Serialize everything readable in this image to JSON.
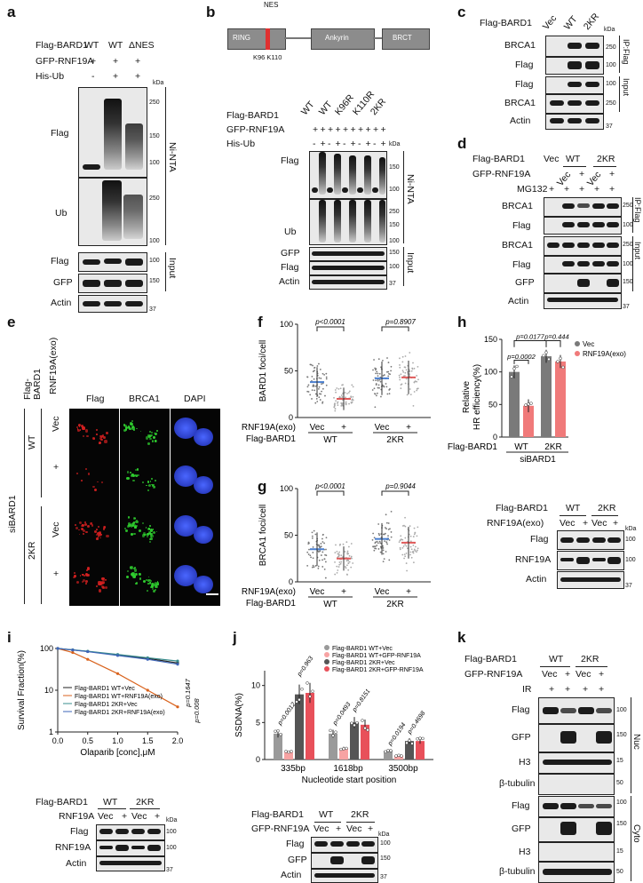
{
  "panels": {
    "a": "a",
    "b": "b",
    "c": "c",
    "d": "d",
    "e": "e",
    "f": "f",
    "g": "g",
    "h": "h",
    "i": "i",
    "j": "j",
    "k": "k"
  },
  "common": {
    "kda": "kDa",
    "flag": "Flag",
    "ub": "Ub",
    "gfp": "GFP",
    "actin": "Actin",
    "brca1": "BRCA1",
    "input": "Input",
    "ninta": "Ni-NTA",
    "ipflag": "IP:Flag",
    "rnf19a": "RNF19A",
    "h3": "H3",
    "btub": "β-tubulin",
    "vec": "Vec",
    "plus": "+",
    "minus": "-",
    "wt": "WT",
    "kr2": "2KR",
    "mw250": "250",
    "mw150": "150",
    "mw100": "100",
    "mw50": "50",
    "mw37": "37",
    "mw15": "15"
  },
  "a": {
    "row1": "Flag-BARD1",
    "row2": "GFP-RNF19A",
    "row3": "His-Ub",
    "col1": "WT",
    "col2": "WT",
    "col3": "ΔNES",
    "r2": [
      "+",
      "+",
      "+"
    ],
    "r3": [
      "-",
      "+",
      "+"
    ]
  },
  "b": {
    "domains": [
      "RING",
      "Ankyrin",
      "BRCT"
    ],
    "nes": "NES",
    "sites": "K96 K110",
    "row1": "Flag-BARD1",
    "row2": "GFP-RNF19A",
    "row3": "His-Ub",
    "cols": [
      "WT",
      "WT",
      "K96R",
      "K110R",
      "2KR"
    ],
    "r2": [
      "+",
      "+",
      "+",
      "+",
      "+",
      "+",
      "+",
      "+",
      "+",
      "+"
    ],
    "r3": [
      "-",
      "+",
      "-",
      "+",
      "-",
      "+",
      "-",
      "+",
      "-",
      "+"
    ]
  },
  "c": {
    "row1": "Flag-BARD1",
    "cols": [
      "Vec",
      "WT",
      "2KR"
    ]
  },
  "d": {
    "row1": "Flag-BARD1",
    "row2": "GFP-RNF19A",
    "row3": "MG132",
    "g1": "Vec",
    "g2": "WT",
    "g3": "2KR",
    "r2": [
      "Vec",
      "+",
      "Vec",
      "+"
    ],
    "r3": [
      "+",
      "+",
      "+",
      "+",
      "+"
    ]
  },
  "e": {
    "h1": "Flag-\nBARD1",
    "h2": "RNF19A(exo)",
    "cols": [
      "Flag",
      "BRCA1",
      "DAPI"
    ],
    "side": "siBARD1",
    "g1": "WT",
    "g2": "2KR",
    "rows": [
      "Vec",
      "+",
      "Vec",
      "+"
    ]
  },
  "f": {
    "ylabel": "BARD1 foci/cell",
    "p1": "p<0.0001",
    "p2": "p=0.8907",
    "ticks": [
      "0",
      "50",
      "100"
    ],
    "r1": "RNF19A(exo)",
    "r2": "Flag-BARD1",
    "cols": [
      "Vec",
      "+",
      "Vec",
      "+"
    ],
    "g1": "WT",
    "g2": "2KR"
  },
  "g": {
    "ylabel": "BRCA1 foci/cell",
    "p1": "p<0.0001",
    "p2": "p=0.9044",
    "ticks": [
      "0",
      "50",
      "100"
    ],
    "r1": "RNF19A(exo)",
    "r2": "Flag-BARD1",
    "cols": [
      "Vec",
      "+",
      "Vec",
      "+"
    ],
    "g1": "WT",
    "g2": "2KR"
  },
  "h": {
    "ylabel": "Relative\nHR efficiency(%)",
    "p_top": "p=0.0177",
    "p_left": "p=0.0002",
    "p_right": "p=0.444",
    "legend": [
      "Vec",
      "RNF19A(exo)"
    ],
    "xrow": "Flag-BARD1",
    "g1": "WT",
    "g2": "2KR",
    "sub": "siBARD1",
    "ticks": [
      "0",
      "50",
      "100",
      "150"
    ],
    "blot_r1": "Flag-BARD1",
    "blot_r2": "RNF19A(exo)",
    "blot_cols": [
      "Vec",
      "+",
      "Vec",
      "+"
    ]
  },
  "i": {
    "ylabel": "Survival Fraction(%)",
    "xlabel": "Olaparib [conc],μM",
    "ticks_y": [
      "1",
      "10",
      "100"
    ],
    "ticks_x": [
      "0.0",
      "0.5",
      "1.0",
      "1.5",
      "2.0"
    ],
    "legend": [
      "Flag-BARD1 WT+Vec",
      "Flag-BARD1 WT+RNF19A(exo)",
      "Flag-BARD1 2KR+Vec",
      "Flag-BARD1 2KR+RNF19A(exo)"
    ],
    "p1": "p=0.1647",
    "p2": "p=0.008",
    "blot_r1": "Flag-BARD1",
    "blot_r2": "RNF19A",
    "blot_cols": [
      "Vec",
      "+",
      "Vec",
      "+"
    ]
  },
  "j": {
    "ylabel": "SSDNA(%)",
    "xlabel": "Nucleotide start position",
    "cats": [
      "335bp",
      "1618bp",
      "3500bp"
    ],
    "ticks": [
      "0",
      "5",
      "10"
    ],
    "legend": [
      "Flag-BARD1 WT+Vec",
      "Flag-BARD1 WT+GFP-RNF19A",
      "Flag-BARD1 2KR+Vec",
      "Flag-BARD1 2KR+GFP-RNF19A"
    ],
    "pvals": [
      "p=0.0012",
      "p=0.963",
      "p=0.0493",
      "p=0.8151",
      "p=0.0194",
      "p=0.4698"
    ],
    "blot_r1": "Flag-BARD1",
    "blot_r2": "GFP-RNF19A",
    "blot_cols": [
      "Vec",
      "+",
      "Vec",
      "+"
    ]
  },
  "k": {
    "row1": "Flag-BARD1",
    "row2": "GFP-RNF19A",
    "row3": "IR",
    "r2": [
      "Vec",
      "+",
      "Vec",
      "+"
    ],
    "r3": [
      "+",
      "+",
      "+",
      "+"
    ],
    "nuc": "Nuc",
    "cyto": "Cyto"
  },
  "chart_data": [
    {
      "type": "scatter",
      "title": "",
      "ylabel": "BARD1 foci/cell",
      "ylim": [
        0,
        100
      ],
      "categories": [
        "WT Vec",
        "WT +",
        "2KR Vec",
        "2KR +"
      ],
      "means": [
        38,
        20,
        42,
        43
      ],
      "sd": [
        16,
        12,
        18,
        18
      ]
    },
    {
      "type": "scatter",
      "title": "",
      "ylabel": "BRCA1 foci/cell",
      "ylim": [
        0,
        100
      ],
      "categories": [
        "WT Vec",
        "WT +",
        "2KR Vec",
        "2KR +"
      ],
      "means": [
        35,
        25,
        46,
        42
      ],
      "sd": [
        18,
        13,
        17,
        17
      ]
    },
    {
      "type": "bar",
      "title": "",
      "ylabel": "Relative HR efficiency(%)",
      "ylim": [
        0,
        150
      ],
      "categories": [
        "WT",
        "2KR"
      ],
      "series": [
        {
          "name": "Vec",
          "values": [
            100,
            124
          ]
        },
        {
          "name": "RNF19A(exo)",
          "values": [
            48,
            116
          ]
        }
      ]
    },
    {
      "type": "line",
      "title": "",
      "xlabel": "Olaparib [conc],μM",
      "ylabel": "Survival Fraction(%)",
      "yscale": "log",
      "x": [
        0,
        0.25,
        0.5,
        1,
        1.5,
        2
      ],
      "series": [
        {
          "name": "Flag-BARD1 WT+Vec",
          "values": [
            100,
            92,
            85,
            70,
            58,
            45
          ]
        },
        {
          "name": "Flag-BARD1 WT+RNF19A(exo)",
          "values": [
            100,
            80,
            55,
            25,
            10,
            4
          ]
        },
        {
          "name": "Flag-BARD1 2KR+Vec",
          "values": [
            100,
            93,
            86,
            72,
            60,
            50
          ]
        },
        {
          "name": "Flag-BARD1 2KR+RNF19A(exo)",
          "values": [
            100,
            92,
            84,
            68,
            55,
            42
          ]
        }
      ]
    },
    {
      "type": "bar",
      "title": "",
      "ylabel": "SSDNA(%)",
      "xlabel": "Nucleotide start position",
      "ylim": [
        0,
        12
      ],
      "categories": [
        "335bp",
        "1618bp",
        "3500bp"
      ],
      "series": [
        {
          "name": "Flag-BARD1 WT+Vec",
          "values": [
            3.5,
            3.5,
            1.2
          ]
        },
        {
          "name": "Flag-BARD1 WT+GFP-RNF19A",
          "values": [
            1.0,
            1.5,
            0.5
          ]
        },
        {
          "name": "Flag-BARD1 2KR+Vec",
          "values": [
            8.8,
            5.0,
            2.5
          ]
        },
        {
          "name": "Flag-BARD1 2KR+GFP-RNF19A",
          "values": [
            9.0,
            4.7,
            2.5
          ]
        }
      ]
    }
  ],
  "colors": {
    "vec": "#7a7a7a",
    "rnf": "#f07a7a",
    "wt_vec": "#9a9a9a",
    "wt_rnf": "#f7a3a3",
    "kr_vec": "#555555",
    "kr_rnf": "#e8505a",
    "line_wt": "#222",
    "line_rnf": "#d9621c",
    "line_kr": "#3a8d8d",
    "line_krr": "#3e66b8"
  }
}
